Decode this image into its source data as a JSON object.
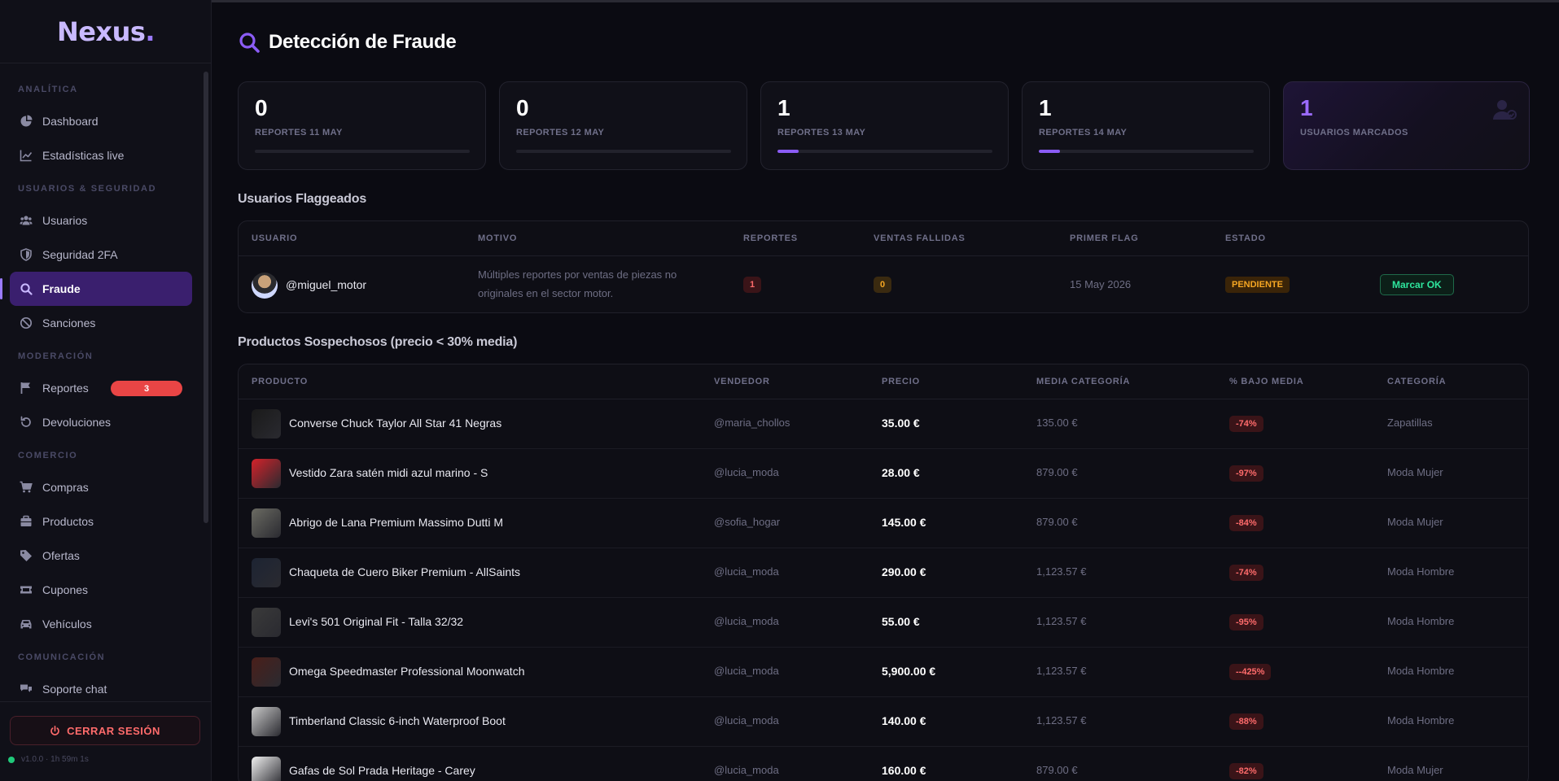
{
  "sidebar": {
    "logo": "Nexus",
    "logo_dot": ".",
    "sections": [
      {
        "label": "ANALÍTICA",
        "items": [
          {
            "label": "Dashboard",
            "icon": "pie-chart-icon"
          },
          {
            "label": "Estadísticas live",
            "icon": "line-chart-icon"
          }
        ]
      },
      {
        "label": "USUARIOS & SEGURIDAD",
        "items": [
          {
            "label": "Usuarios",
            "icon": "users-icon"
          },
          {
            "label": "Seguridad 2FA",
            "icon": "shield-icon"
          },
          {
            "label": "Fraude",
            "icon": "search-icon",
            "active": true
          },
          {
            "label": "Sanciones",
            "icon": "ban-icon"
          }
        ]
      },
      {
        "label": "MODERACIÓN",
        "items": [
          {
            "label": "Reportes",
            "icon": "flag-icon",
            "badge": "3"
          },
          {
            "label": "Devoluciones",
            "icon": "undo-icon"
          }
        ]
      },
      {
        "label": "COMERCIO",
        "items": [
          {
            "label": "Compras",
            "icon": "cart-icon"
          },
          {
            "label": "Productos",
            "icon": "box-icon"
          },
          {
            "label": "Ofertas",
            "icon": "tag-icon"
          },
          {
            "label": "Cupones",
            "icon": "ticket-icon"
          },
          {
            "label": "Vehículos",
            "icon": "car-icon"
          }
        ]
      },
      {
        "label": "COMUNICACIÓN",
        "items": [
          {
            "label": "Soporte chat",
            "icon": "chat-icon"
          }
        ]
      }
    ],
    "logout_label": "CERRAR SESIÓN",
    "version": "v1.0.0 · 1h 59m 1s"
  },
  "page": {
    "title": "Detección de Fraude",
    "title_icon": "search-icon"
  },
  "stats": [
    {
      "value": "0",
      "label": "REPORTES 11 MAY",
      "fill": 0
    },
    {
      "value": "0",
      "label": "REPORTES 12 MAY",
      "fill": 0
    },
    {
      "value": "1",
      "label": "REPORTES 13 MAY",
      "fill": 0.1
    },
    {
      "value": "1",
      "label": "REPORTES 14 MAY",
      "fill": 0.1
    },
    {
      "value": "1",
      "label": "USUARIOS MARCADOS",
      "highlight": true
    }
  ],
  "flagged": {
    "title": "Usuarios Flaggeados",
    "columns": [
      "USUARIO",
      "MOTIVO",
      "REPORTES",
      "VENTAS FALLIDAS",
      "PRIMER FLAG",
      "ESTADO"
    ],
    "rows": [
      {
        "user": "@miguel_motor",
        "motive": "Múltiples reportes por ventas de piezas no originales en el sector motor.",
        "reports": "1",
        "failed_sales": "0",
        "first_flag": "15 May 2026",
        "status": "PENDIENTE",
        "action": "Marcar OK"
      }
    ]
  },
  "products": {
    "title": "Productos Sospechosos (precio < 30% media)",
    "columns": [
      "PRODUCTO",
      "VENDEDOR",
      "PRECIO",
      "MEDIA CATEGORÍA",
      "% BAJO MEDIA",
      "CATEGORÍA"
    ],
    "rows": [
      {
        "name": "Converse Chuck Taylor All Star 41 Negras",
        "seller": "@maria_chollos",
        "price": "35.00 €",
        "avg": "135.00 €",
        "below": "-74%",
        "category": "Zapatillas",
        "thumb": "#1a1a1a"
      },
      {
        "name": "Vestido Zara satén midi azul marino - S",
        "seller": "@lucia_moda",
        "price": "28.00 €",
        "avg": "879.00 €",
        "below": "-97%",
        "category": "Moda Mujer",
        "thumb": "#d4222a"
      },
      {
        "name": "Abrigo de Lana Premium Massimo Dutti M",
        "seller": "@sofia_hogar",
        "price": "145.00 €",
        "avg": "879.00 €",
        "below": "-84%",
        "category": "Moda Mujer",
        "thumb": "#6b6b63"
      },
      {
        "name": "Chaqueta de Cuero Biker Premium - AllSaints",
        "seller": "@lucia_moda",
        "price": "290.00 €",
        "avg": "1,123.57 €",
        "below": "-74%",
        "category": "Moda Hombre",
        "thumb": "#1d2433"
      },
      {
        "name": "Levi's 501 Original Fit - Talla 32/32",
        "seller": "@lucia_moda",
        "price": "55.00 €",
        "avg": "1,123.57 €",
        "below": "-95%",
        "category": "Moda Hombre",
        "thumb": "#3a3a3a"
      },
      {
        "name": "Omega Speedmaster Professional Moonwatch",
        "seller": "@lucia_moda",
        "price": "5,900.00 €",
        "avg": "1,123.57 €",
        "below": "--425%",
        "category": "Moda Hombre",
        "thumb": "#4a1f1a"
      },
      {
        "name": "Timberland Classic 6-inch Waterproof Boot",
        "seller": "@lucia_moda",
        "price": "140.00 €",
        "avg": "1,123.57 €",
        "below": "-88%",
        "category": "Moda Hombre",
        "thumb": "#c9c9c9"
      },
      {
        "name": "Gafas de Sol Prada Heritage - Carey",
        "seller": "@lucia_moda",
        "price": "160.00 €",
        "avg": "879.00 €",
        "below": "-82%",
        "category": "Moda Mujer",
        "thumb": "#f0f0f0"
      }
    ]
  },
  "colors": {
    "accent": "#8b5cf6",
    "danger": "#ff6b6b",
    "warning": "#f5a623",
    "success": "#2ee59d"
  }
}
